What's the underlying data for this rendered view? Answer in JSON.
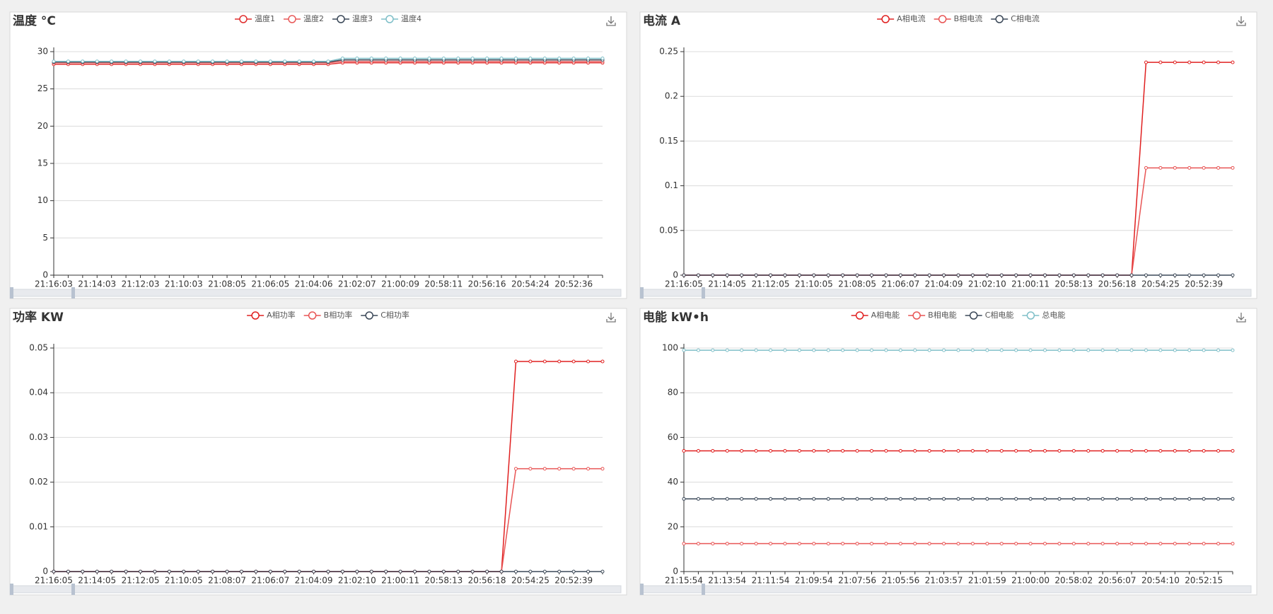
{
  "chart_data": [
    {
      "type": "line",
      "title": "温度 °C",
      "categories": [
        "21:16:03",
        null,
        null,
        "21:14:03",
        null,
        null,
        "21:12:03",
        null,
        null,
        "21:10:03",
        null,
        null,
        "21:08:05",
        null,
        null,
        "21:06:05",
        null,
        null,
        "21:04:06",
        null,
        null,
        "21:02:07",
        null,
        null,
        "21:00:09",
        null,
        null,
        "20:58:11",
        null,
        null,
        "20:56:16",
        null,
        null,
        "20:54:24",
        null,
        null,
        "20:52:36",
        null,
        null
      ],
      "series": [
        {
          "name": "温度1",
          "color": "#e02f2f",
          "values": [
            28.3,
            28.3,
            28.3,
            28.3,
            28.3,
            28.3,
            28.3,
            28.3,
            28.3,
            28.3,
            28.3,
            28.3,
            28.3,
            28.3,
            28.3,
            28.3,
            28.3,
            28.3,
            28.3,
            28.3,
            28.5,
            28.5,
            28.5,
            28.5,
            28.5,
            28.5,
            28.5,
            28.5,
            28.5,
            28.5,
            28.5,
            28.5,
            28.5,
            28.5,
            28.5,
            28.5,
            28.5,
            28.5,
            28.5
          ]
        },
        {
          "name": "温度2",
          "color": "#e85a5a",
          "values": [
            28.5,
            28.5,
            28.5,
            28.5,
            28.5,
            28.5,
            28.5,
            28.5,
            28.5,
            28.5,
            28.5,
            28.5,
            28.5,
            28.5,
            28.5,
            28.5,
            28.5,
            28.5,
            28.5,
            28.5,
            28.7,
            28.7,
            28.7,
            28.7,
            28.7,
            28.7,
            28.7,
            28.7,
            28.7,
            28.7,
            28.7,
            28.7,
            28.7,
            28.7,
            28.7,
            28.7,
            28.7,
            28.7,
            28.7
          ]
        },
        {
          "name": "温度3",
          "color": "#3b4858",
          "values": [
            28.6,
            28.6,
            28.6,
            28.6,
            28.6,
            28.6,
            28.6,
            28.6,
            28.6,
            28.6,
            28.6,
            28.6,
            28.6,
            28.6,
            28.6,
            28.6,
            28.6,
            28.6,
            28.6,
            28.6,
            28.9,
            28.9,
            28.9,
            28.9,
            28.9,
            28.9,
            28.9,
            28.9,
            28.9,
            28.9,
            28.9,
            28.9,
            28.9,
            28.9,
            28.9,
            28.9,
            28.9,
            28.9,
            28.9
          ]
        },
        {
          "name": "温度4",
          "color": "#7fbfc8",
          "values": [
            28.7,
            28.7,
            28.7,
            28.7,
            28.7,
            28.7,
            28.7,
            28.7,
            28.7,
            28.7,
            28.7,
            28.7,
            28.7,
            28.7,
            28.7,
            28.7,
            28.7,
            28.7,
            28.7,
            28.7,
            29.1,
            29.1,
            29.1,
            29.1,
            29.1,
            29.1,
            29.1,
            29.1,
            29.1,
            29.1,
            29.1,
            29.1,
            29.1,
            29.1,
            29.1,
            29.1,
            29.1,
            29.1,
            29.1
          ]
        }
      ],
      "ylim": [
        0,
        30
      ],
      "yticks": [
        0,
        5,
        10,
        15,
        20,
        25,
        30
      ],
      "grid": true
    },
    {
      "type": "line",
      "title": "电流 A",
      "categories": [
        "21:16:05",
        null,
        null,
        "21:14:05",
        null,
        null,
        "21:12:05",
        null,
        null,
        "21:10:05",
        null,
        null,
        "21:08:05",
        null,
        null,
        "21:06:07",
        null,
        null,
        "21:04:09",
        null,
        null,
        "21:02:10",
        null,
        null,
        "21:00:11",
        null,
        null,
        "20:58:13",
        null,
        null,
        "20:56:18",
        null,
        null,
        "20:54:25",
        null,
        null,
        "20:52:39",
        null,
        null
      ],
      "series": [
        {
          "name": "A相电流",
          "color": "#e02020",
          "values": [
            0,
            0,
            0,
            0,
            0,
            0,
            0,
            0,
            0,
            0,
            0,
            0,
            0,
            0,
            0,
            0,
            0,
            0,
            0,
            0,
            0,
            0,
            0,
            0,
            0,
            0,
            0,
            0,
            0,
            0,
            0,
            0,
            0.238,
            0.238,
            0.238,
            0.238,
            0.238,
            0.238,
            0.238
          ]
        },
        {
          "name": "B相电流",
          "color": "#e85555",
          "values": [
            0,
            0,
            0,
            0,
            0,
            0,
            0,
            0,
            0,
            0,
            0,
            0,
            0,
            0,
            0,
            0,
            0,
            0,
            0,
            0,
            0,
            0,
            0,
            0,
            0,
            0,
            0,
            0,
            0,
            0,
            0,
            0,
            0.12,
            0.12,
            0.12,
            0.12,
            0.12,
            0.12,
            0.12
          ]
        },
        {
          "name": "C相电流",
          "color": "#3b4858",
          "values": [
            0,
            0,
            0,
            0,
            0,
            0,
            0,
            0,
            0,
            0,
            0,
            0,
            0,
            0,
            0,
            0,
            0,
            0,
            0,
            0,
            0,
            0,
            0,
            0,
            0,
            0,
            0,
            0,
            0,
            0,
            0,
            0,
            0,
            0,
            0,
            0,
            0,
            0,
            0
          ]
        }
      ],
      "ylim": [
        0,
        0.25
      ],
      "yticks": [
        0,
        0.05,
        0.1,
        0.15,
        0.2,
        0.25
      ],
      "grid": true
    },
    {
      "type": "line",
      "title": "功率 KW",
      "categories": [
        "21:16:05",
        null,
        null,
        "21:14:05",
        null,
        null,
        "21:12:05",
        null,
        null,
        "21:10:05",
        null,
        null,
        "21:08:07",
        null,
        null,
        "21:06:07",
        null,
        null,
        "21:04:09",
        null,
        null,
        "21:02:10",
        null,
        null,
        "21:00:11",
        null,
        null,
        "20:58:13",
        null,
        null,
        "20:56:18",
        null,
        null,
        "20:54:25",
        null,
        null,
        "20:52:39",
        null,
        null
      ],
      "series": [
        {
          "name": "A相功率",
          "color": "#e02020",
          "values": [
            0,
            0,
            0,
            0,
            0,
            0,
            0,
            0,
            0,
            0,
            0,
            0,
            0,
            0,
            0,
            0,
            0,
            0,
            0,
            0,
            0,
            0,
            0,
            0,
            0,
            0,
            0,
            0,
            0,
            0,
            0,
            0,
            0.047,
            0.047,
            0.047,
            0.047,
            0.047,
            0.047,
            0.047
          ]
        },
        {
          "name": "B相功率",
          "color": "#e85555",
          "values": [
            0,
            0,
            0,
            0,
            0,
            0,
            0,
            0,
            0,
            0,
            0,
            0,
            0,
            0,
            0,
            0,
            0,
            0,
            0,
            0,
            0,
            0,
            0,
            0,
            0,
            0,
            0,
            0,
            0,
            0,
            0,
            0,
            0.023,
            0.023,
            0.023,
            0.023,
            0.023,
            0.023,
            0.023
          ]
        },
        {
          "name": "C相功率",
          "color": "#3b4858",
          "values": [
            0,
            0,
            0,
            0,
            0,
            0,
            0,
            0,
            0,
            0,
            0,
            0,
            0,
            0,
            0,
            0,
            0,
            0,
            0,
            0,
            0,
            0,
            0,
            0,
            0,
            0,
            0,
            0,
            0,
            0,
            0,
            0,
            0,
            0,
            0,
            0,
            0,
            0,
            0
          ]
        }
      ],
      "ylim": [
        0,
        0.05
      ],
      "yticks": [
        0,
        0.01,
        0.02,
        0.03,
        0.04,
        0.05
      ],
      "grid": true
    },
    {
      "type": "line",
      "title": "电能 kW•h",
      "categories": [
        "21:15:54",
        null,
        null,
        "21:13:54",
        null,
        null,
        "21:11:54",
        null,
        null,
        "21:09:54",
        null,
        null,
        "21:07:56",
        null,
        null,
        "21:05:56",
        null,
        null,
        "21:03:57",
        null,
        null,
        "21:01:59",
        null,
        null,
        "21:00:00",
        null,
        null,
        "20:58:02",
        null,
        null,
        "20:56:07",
        null,
        null,
        "20:54:10",
        null,
        null,
        "20:52:15",
        null,
        null
      ],
      "series": [
        {
          "name": "A相电能",
          "color": "#e02020",
          "values": [
            54,
            54,
            54,
            54,
            54,
            54,
            54,
            54,
            54,
            54,
            54,
            54,
            54,
            54,
            54,
            54,
            54,
            54,
            54,
            54,
            54,
            54,
            54,
            54,
            54,
            54,
            54,
            54,
            54,
            54,
            54,
            54,
            54,
            54,
            54,
            54,
            54,
            54,
            54
          ]
        },
        {
          "name": "B相电能",
          "color": "#e85555",
          "values": [
            12.5,
            12.5,
            12.5,
            12.5,
            12.5,
            12.5,
            12.5,
            12.5,
            12.5,
            12.5,
            12.5,
            12.5,
            12.5,
            12.5,
            12.5,
            12.5,
            12.5,
            12.5,
            12.5,
            12.5,
            12.5,
            12.5,
            12.5,
            12.5,
            12.5,
            12.5,
            12.5,
            12.5,
            12.5,
            12.5,
            12.5,
            12.5,
            12.5,
            12.5,
            12.5,
            12.5,
            12.5,
            12.5,
            12.5
          ]
        },
        {
          "name": "C相电能",
          "color": "#3b4858",
          "values": [
            32.5,
            32.5,
            32.5,
            32.5,
            32.5,
            32.5,
            32.5,
            32.5,
            32.5,
            32.5,
            32.5,
            32.5,
            32.5,
            32.5,
            32.5,
            32.5,
            32.5,
            32.5,
            32.5,
            32.5,
            32.5,
            32.5,
            32.5,
            32.5,
            32.5,
            32.5,
            32.5,
            32.5,
            32.5,
            32.5,
            32.5,
            32.5,
            32.5,
            32.5,
            32.5,
            32.5,
            32.5,
            32.5,
            32.5
          ]
        },
        {
          "name": "总电能",
          "color": "#7fbfc8",
          "values": [
            99,
            99,
            99,
            99,
            99,
            99,
            99,
            99,
            99,
            99,
            99,
            99,
            99,
            99,
            99,
            99,
            99,
            99,
            99,
            99,
            99,
            99,
            99,
            99,
            99,
            99,
            99,
            99,
            99,
            99,
            99,
            99,
            99,
            99,
            99,
            99,
            99,
            99,
            99
          ]
        }
      ],
      "ylim": [
        0,
        100
      ],
      "yticks": [
        0,
        20,
        40,
        60,
        80,
        100
      ],
      "grid": true
    }
  ]
}
